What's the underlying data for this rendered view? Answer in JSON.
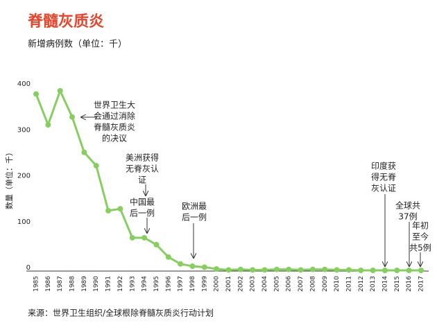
{
  "chart_data": {
    "type": "line",
    "title": "脊髓灰质炎",
    "subtitle": "新增病例数（单位：千）",
    "y_label": "数量（单位：千）",
    "source": "来源：世界卫生组织/全球根除脊髓灰质炎行动计划",
    "categories": [
      "1985",
      "1986",
      "1987",
      "1988",
      "1989",
      "1990",
      "1991",
      "1992",
      "1993",
      "1994",
      "1995",
      "1996",
      "1997",
      "1998",
      "1999",
      "2000",
      "2001",
      "2002",
      "2003",
      "2004",
      "2005",
      "2006",
      "2007",
      "2008",
      "2009",
      "2010",
      "2011",
      "2012",
      "2013",
      "2014",
      "2015",
      "2016",
      "2017"
    ],
    "series": [
      {
        "color": "#86cf5e",
        "values": [
          384,
          317,
          391,
          334,
          257,
          228,
          130,
          134,
          71,
          71,
          56,
          29,
          14,
          9,
          7,
          3,
          1,
          2,
          1,
          1,
          2,
          2,
          1,
          2,
          2,
          1,
          1,
          0,
          0,
          0,
          0,
          0,
          0
        ]
      }
    ],
    "ylim": [
      0,
      400
    ],
    "yticks": [
      0,
      100,
      200,
      300,
      400
    ],
    "grid": false,
    "annotations": [
      [
        "世界卫生大",
        "会通过消除",
        "脊髓灰质炎",
        "的决议"
      ],
      [
        "美洲获得",
        "无脊灰认",
        "证"
      ],
      [
        "中国最",
        "后一例"
      ],
      [
        "欧洲最",
        "后一例"
      ],
      [
        "印度获",
        "得无脊",
        "灰认证"
      ],
      [
        "全球共",
        "37例"
      ],
      [
        "年初",
        "至今",
        "共5例"
      ]
    ]
  }
}
